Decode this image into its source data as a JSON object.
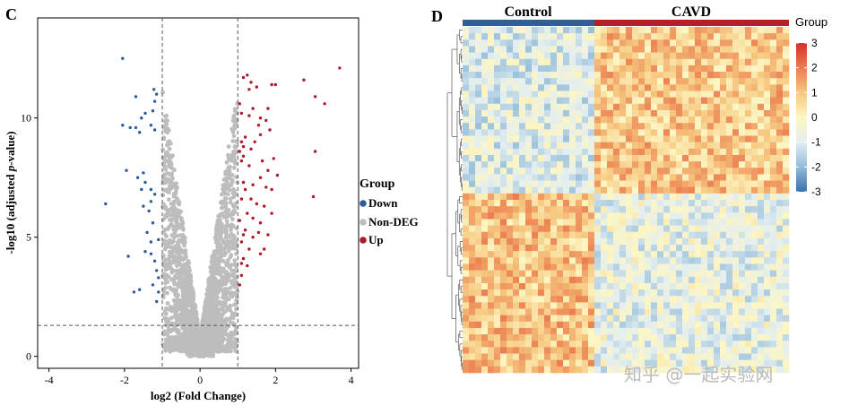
{
  "chart_data": [
    {
      "panel_label": "C",
      "type": "scatter",
      "subtype": "volcano",
      "xlabel": "log2 (Fold Change)",
      "ylabel_main": "-log10 (adjusted ",
      "ylabel_italic": "p",
      "ylabel_tail": "-value)",
      "xlim": [
        -4.3,
        4.2
      ],
      "ylim": [
        -0.5,
        14.2
      ],
      "xticks": [
        -4,
        -2,
        0,
        2,
        4
      ],
      "yticks": [
        0,
        5,
        10
      ],
      "grid": false,
      "thresholds": {
        "log2fc": [
          -1,
          1
        ],
        "neg_log10_padj": 1.3
      },
      "legend": {
        "title": "Group",
        "position": "right",
        "entries": [
          {
            "label": "Down",
            "color": "#2c5d9c"
          },
          {
            "label": "Non-DEG",
            "color": "#bdbdbd"
          },
          {
            "label": "Up",
            "color": "#b2182b"
          }
        ]
      },
      "series": [
        {
          "name": "Down",
          "color": "#2c5d9c",
          "points": [
            [
              -2.05,
              12.5
            ],
            [
              -1.7,
              10.9
            ],
            [
              -1.22,
              11.2
            ],
            [
              -1.15,
              11.0
            ],
            [
              -1.2,
              10.7
            ],
            [
              -1.25,
              10.3
            ],
            [
              -1.45,
              10.2
            ],
            [
              -1.55,
              10.0
            ],
            [
              -1.3,
              9.7
            ],
            [
              -1.7,
              9.6
            ],
            [
              -1.6,
              9.4
            ],
            [
              -1.2,
              9.5
            ],
            [
              -2.05,
              9.7
            ],
            [
              -1.85,
              9.6
            ],
            [
              -1.95,
              7.8
            ],
            [
              -1.5,
              7.7
            ],
            [
              -1.65,
              7.5
            ],
            [
              -1.45,
              7.3
            ],
            [
              -1.55,
              7.0
            ],
            [
              -1.3,
              7.0
            ],
            [
              -1.2,
              6.8
            ],
            [
              -1.3,
              6.5
            ],
            [
              -1.5,
              6.3
            ],
            [
              -1.35,
              6.1
            ],
            [
              -1.25,
              5.6
            ],
            [
              -1.4,
              5.2
            ],
            [
              -1.3,
              4.8
            ],
            [
              -1.45,
              4.4
            ],
            [
              -1.3,
              4.3
            ],
            [
              -1.2,
              4.0
            ],
            [
              -1.15,
              3.6
            ],
            [
              -1.25,
              3.0
            ],
            [
              -1.1,
              2.7
            ],
            [
              -2.5,
              6.4
            ],
            [
              -1.9,
              4.2
            ],
            [
              -1.1,
              4.9
            ],
            [
              -1.15,
              2.3
            ],
            [
              -1.6,
              2.8
            ],
            [
              -1.1,
              3.3
            ],
            [
              -1.75,
              2.7
            ]
          ]
        },
        {
          "name": "Up",
          "color": "#b2182b",
          "points": [
            [
              3.7,
              12.1
            ],
            [
              2.75,
              11.6
            ],
            [
              1.15,
              11.7
            ],
            [
              1.35,
              11.5
            ],
            [
              1.9,
              11.4
            ],
            [
              2.0,
              11.4
            ],
            [
              1.5,
              11.3
            ],
            [
              1.3,
              11.2
            ],
            [
              3.05,
              10.9
            ],
            [
              3.3,
              10.6
            ],
            [
              1.4,
              10.4
            ],
            [
              1.3,
              10.1
            ],
            [
              1.6,
              10.0
            ],
            [
              1.1,
              10.2
            ],
            [
              1.75,
              9.9
            ],
            [
              1.55,
              9.7
            ],
            [
              1.85,
              9.5
            ],
            [
              1.6,
              9.3
            ],
            [
              1.2,
              9.2
            ],
            [
              1.1,
              9.0
            ],
            [
              1.15,
              8.8
            ],
            [
              1.05,
              8.6
            ],
            [
              1.35,
              8.7
            ],
            [
              3.05,
              8.6
            ],
            [
              1.15,
              8.4
            ],
            [
              1.1,
              8.2
            ],
            [
              1.3,
              8.0
            ],
            [
              1.8,
              7.8
            ],
            [
              1.6,
              7.5
            ],
            [
              1.15,
              7.3
            ],
            [
              1.4,
              7.2
            ],
            [
              1.75,
              7.1
            ],
            [
              1.9,
              7.0
            ],
            [
              3.0,
              6.7
            ],
            [
              1.2,
              7.0
            ],
            [
              1.1,
              6.6
            ],
            [
              1.5,
              6.4
            ],
            [
              1.7,
              6.3
            ],
            [
              1.9,
              6.0
            ],
            [
              1.25,
              6.0
            ],
            [
              1.4,
              5.8
            ],
            [
              1.05,
              5.7
            ],
            [
              1.6,
              5.6
            ],
            [
              1.2,
              5.3
            ],
            [
              1.8,
              5.1
            ],
            [
              1.4,
              5.0
            ],
            [
              1.1,
              4.8
            ],
            [
              1.3,
              4.5
            ],
            [
              1.6,
              4.3
            ],
            [
              1.15,
              4.1
            ],
            [
              1.25,
              3.8
            ],
            [
              1.1,
              3.4
            ],
            [
              1.05,
              3.0
            ],
            [
              1.7,
              4.5
            ],
            [
              1.55,
              5.2
            ],
            [
              1.35,
              6.6
            ],
            [
              1.65,
              8.2
            ],
            [
              1.45,
              9.0
            ],
            [
              1.8,
              10.4
            ],
            [
              1.25,
              11.8
            ],
            [
              1.05,
              10.6
            ],
            [
              2.05,
              7.6
            ],
            [
              1.95,
              8.3
            ],
            [
              1.15,
              5.1
            ],
            [
              1.1,
              3.9
            ]
          ]
        },
        {
          "name": "Non-DEG",
          "color": "#bdbdbd",
          "points": []
        }
      ]
    },
    {
      "panel_label": "D",
      "type": "heatmap",
      "groups": [
        {
          "label": "Control",
          "color": "#2f5f95",
          "n_columns": 21
        },
        {
          "label": "CAVD",
          "color": "#b51f26",
          "n_columns": 31
        }
      ],
      "n_rows": 54,
      "annotation_title": "Group",
      "colorbar": {
        "min": -3,
        "max": 3,
        "ticks": [
          3,
          2,
          1,
          0,
          -1,
          -2,
          -3
        ],
        "tick_labels": [
          "3",
          "2",
          "1",
          "0",
          "-1",
          "-2",
          "-3"
        ],
        "colors": [
          "#3a6fad",
          "#92bcda",
          "#e3eef0",
          "#fdf6c3",
          "#f6c77f",
          "#ec7d50",
          "#d73027"
        ]
      },
      "pattern": "upper genes lower in Control / higher in CAVD; lower genes higher in Control / lower in CAVD"
    }
  ],
  "watermark": "知乎 @一起实验网"
}
